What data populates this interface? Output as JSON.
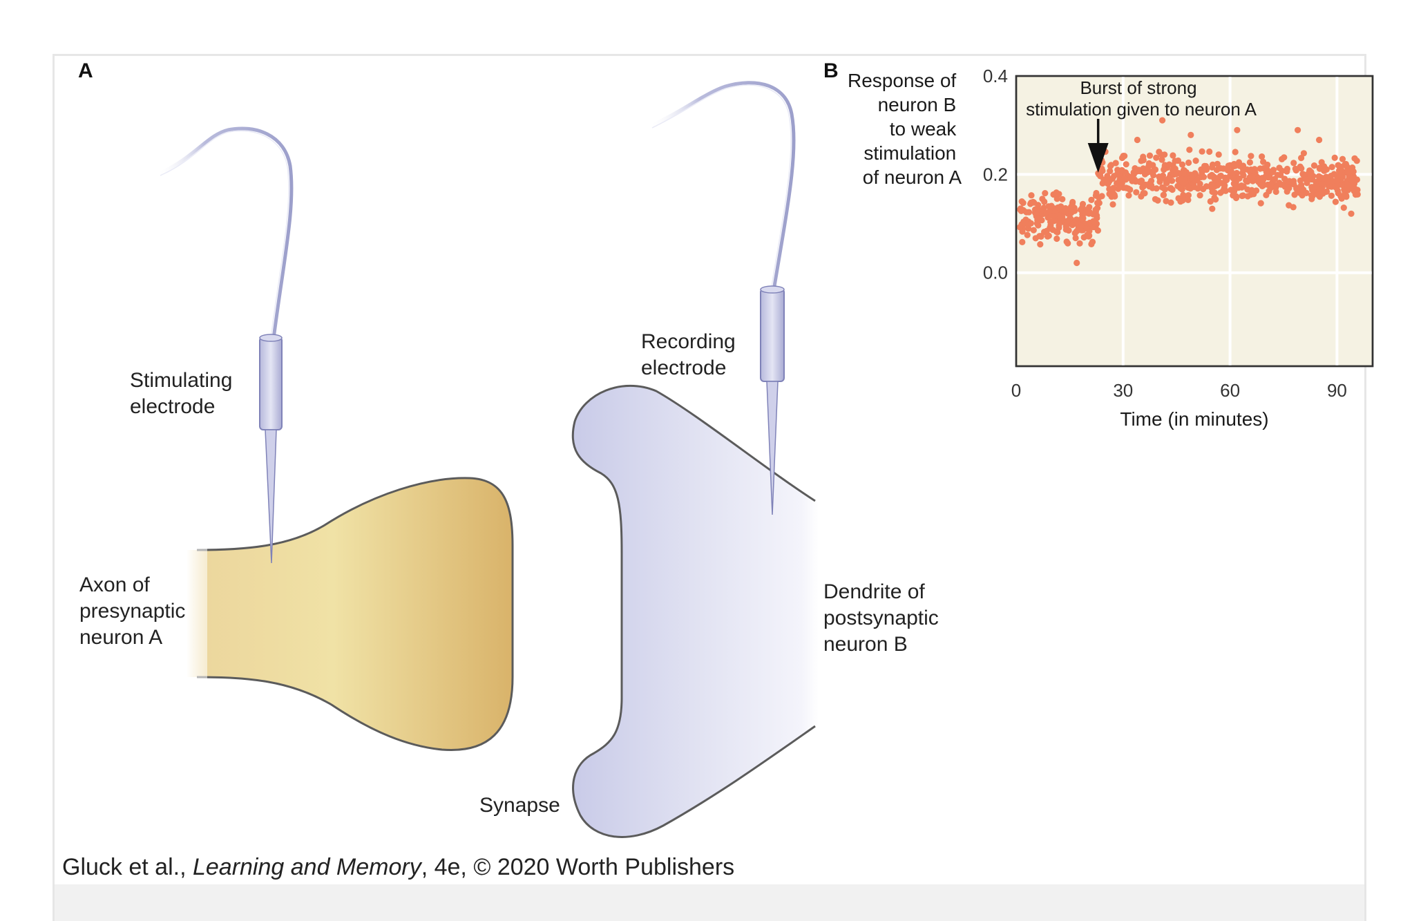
{
  "panel_a": {
    "label": "A",
    "stimulating_electrode": [
      "Stimulating",
      "electrode"
    ],
    "recording_electrode": [
      "Recording",
      "electrode"
    ],
    "axon": [
      "Axon of",
      "presynaptic",
      "neuron A"
    ],
    "dendrite": [
      "Dendrite of",
      "postsynaptic",
      "neuron B"
    ],
    "synapse": "Synapse",
    "colors": {
      "axon": "#e2c37a",
      "dendrite": "#dfe0f1",
      "electrode": "#c9cbe6"
    }
  },
  "panel_b": {
    "label": "B"
  },
  "chart_data": {
    "type": "scatter",
    "title": "",
    "ylabel_lines": [
      "Response of",
      "neuron B",
      "to weak",
      "stimulation",
      "of neuron A"
    ],
    "xlabel": "Time (in minutes)",
    "xlim": [
      0,
      100
    ],
    "ylim": [
      -0.19,
      0.4
    ],
    "x_ticks": [
      0,
      30,
      60,
      90
    ],
    "x_tick_labels": [
      "0",
      "30",
      "60",
      "90"
    ],
    "y_ticks": [
      0.4,
      0.2,
      0.0
    ],
    "y_tick_labels": [
      "0.4",
      "0.2",
      "0.0"
    ],
    "grid": true,
    "annotation": {
      "lines": [
        "Burst of strong",
        "stimulation given to neuron A"
      ],
      "x": 23
    },
    "colors": {
      "points": "#f07f5c",
      "plot_bg": "#f5f2e3",
      "grid": "#ffffff"
    },
    "series": [
      {
        "segments": [
          {
            "x_start": 1,
            "x_end": 23,
            "mean": 0.11,
            "spread": 0.03,
            "count": 190
          },
          {
            "x_start": 23,
            "x_end": 96,
            "mean": 0.19,
            "spread": 0.03,
            "count": 560
          }
        ],
        "outliers": [
          {
            "x": 17,
            "y": 0.02
          },
          {
            "x": 41,
            "y": 0.31
          },
          {
            "x": 34,
            "y": 0.27
          },
          {
            "x": 49,
            "y": 0.28
          },
          {
            "x": 62,
            "y": 0.29
          },
          {
            "x": 79,
            "y": 0.29
          },
          {
            "x": 85,
            "y": 0.27
          },
          {
            "x": 94,
            "y": 0.12
          },
          {
            "x": 55,
            "y": 0.13
          },
          {
            "x": 12,
            "y": 0.16
          }
        ]
      }
    ]
  },
  "credit": {
    "prefix": "Gluck et al., ",
    "book_title": "Learning and Memory",
    "suffix": ", 4e, © 2020 Worth Publishers"
  }
}
